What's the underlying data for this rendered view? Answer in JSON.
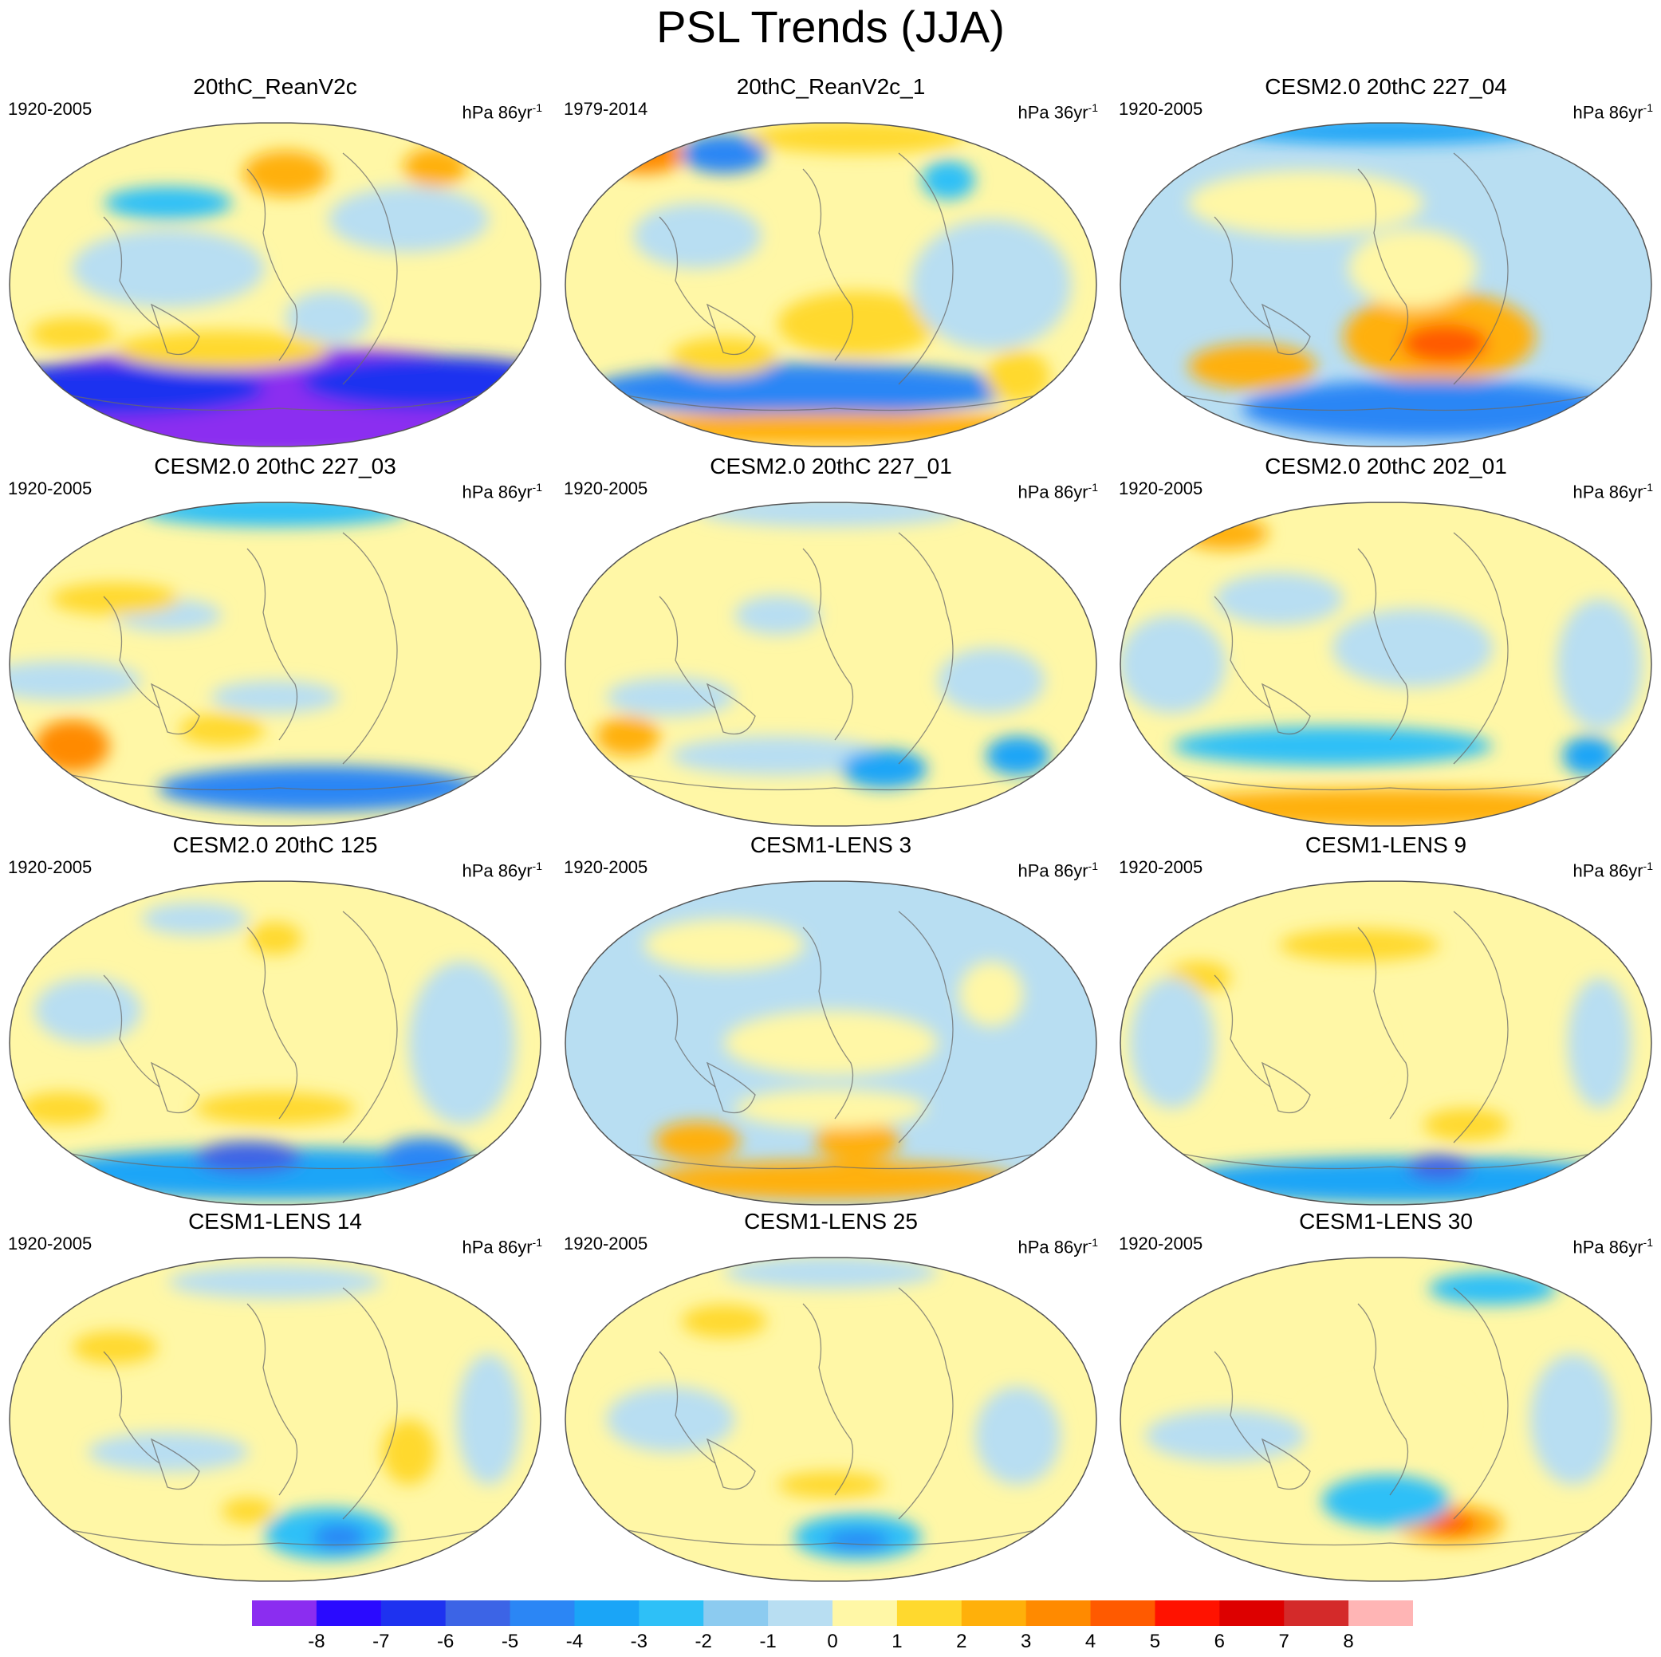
{
  "title": "PSL Trends (JJA)",
  "palette": {
    "-8": "#8b2df0",
    "-7": "#2a0aff",
    "-6": "#1e32f0",
    "-5": "#3c64e6",
    "-4": "#2b86f5",
    "-3": "#1aa5f7",
    "-2": "#2ec0f7",
    "-1": "#8ccbf0",
    "0": "#b8def2",
    "1": "#fff7a6",
    "2": "#ffd92e",
    "3": "#ffb00a",
    "4": "#ff8a00",
    "5": "#ff5a00",
    "6": "#ff1200",
    "7": "#dd0000",
    "8": "#d42a2a",
    "9": "#ffb5b5"
  },
  "chart_data": {
    "type": "heatmap",
    "colorbar": {
      "tick_labels": [
        "-8",
        "-7",
        "-6",
        "-5",
        "-4",
        "-3",
        "-2",
        "-1",
        "0",
        "1",
        "2",
        "3",
        "4",
        "5",
        "6",
        "7",
        "8"
      ],
      "levels": [
        -8,
        -7,
        -6,
        -5,
        -4,
        -3,
        -2,
        -1,
        0,
        1,
        2,
        3,
        4,
        5,
        6,
        7,
        8
      ],
      "colors": [
        "#8b2df0",
        "#2a0aff",
        "#1e32f0",
        "#3c64e6",
        "#2b86f5",
        "#1aa5f7",
        "#2ec0f7",
        "#8ccbf0",
        "#b8def2",
        "#fff7a6",
        "#ffd92e",
        "#ffb00a",
        "#ff8a00",
        "#ff5a00",
        "#ff1200",
        "#dd0000",
        "#d42a2a",
        "#ffb5b5"
      ]
    },
    "panels": [
      {
        "title": "20thC_ReanV2c",
        "period": "1920-2005",
        "units": "hPa 86yr",
        "units_exp": "-1",
        "background_level": 1,
        "blobs": [
          [
            0.5,
            0.85,
            0.55,
            0.16,
            -8
          ],
          [
            0.5,
            0.93,
            0.6,
            0.1,
            -8
          ],
          [
            0.2,
            0.82,
            0.28,
            0.08,
            -6
          ],
          [
            0.8,
            0.8,
            0.25,
            0.08,
            -6
          ],
          [
            0.52,
            0.16,
            0.08,
            0.07,
            3
          ],
          [
            0.8,
            0.14,
            0.06,
            0.06,
            3
          ],
          [
            0.3,
            0.25,
            0.12,
            0.05,
            -2
          ],
          [
            0.12,
            0.65,
            0.08,
            0.05,
            2
          ],
          [
            0.6,
            0.6,
            0.08,
            0.08,
            0
          ],
          [
            0.75,
            0.3,
            0.15,
            0.1,
            0
          ],
          [
            0.3,
            0.45,
            0.18,
            0.12,
            0
          ],
          [
            0.4,
            0.7,
            0.2,
            0.06,
            2
          ]
        ]
      },
      {
        "title": "20thC_ReanV2c_1",
        "period": "1979-2014",
        "units": "hPa 36yr",
        "units_exp": "-1",
        "background_level": 1,
        "blobs": [
          [
            0.45,
            0.82,
            0.4,
            0.08,
            -4
          ],
          [
            0.15,
            0.1,
            0.08,
            0.06,
            4
          ],
          [
            0.3,
            0.1,
            0.08,
            0.06,
            -4
          ],
          [
            0.72,
            0.18,
            0.05,
            0.06,
            -2
          ],
          [
            0.55,
            0.62,
            0.15,
            0.1,
            2
          ],
          [
            0.5,
            0.94,
            0.5,
            0.05,
            3
          ],
          [
            0.25,
            0.35,
            0.12,
            0.1,
            0
          ],
          [
            0.8,
            0.5,
            0.15,
            0.2,
            0
          ],
          [
            0.3,
            0.72,
            0.1,
            0.06,
            2
          ],
          [
            0.85,
            0.78,
            0.06,
            0.08,
            2
          ],
          [
            0.55,
            0.05,
            0.2,
            0.05,
            2
          ]
        ]
      },
      {
        "title": "CESM2.0 20thC 227_04",
        "period": "1920-2005",
        "units": "hPa 86yr",
        "units_exp": "-1",
        "background_level": 0,
        "blobs": [
          [
            0.6,
            0.66,
            0.18,
            0.14,
            3
          ],
          [
            0.61,
            0.68,
            0.08,
            0.06,
            5
          ],
          [
            0.58,
            0.88,
            0.35,
            0.09,
            -4
          ],
          [
            0.25,
            0.75,
            0.12,
            0.07,
            3
          ],
          [
            0.35,
            0.25,
            0.22,
            0.1,
            1
          ],
          [
            0.5,
            0.03,
            0.3,
            0.04,
            -3
          ],
          [
            0.55,
            0.45,
            0.12,
            0.12,
            1
          ]
        ]
      },
      {
        "title": "CESM2.0 20thC 227_03",
        "period": "1920-2005",
        "units": "hPa 86yr",
        "units_exp": "-1",
        "background_level": 1,
        "blobs": [
          [
            0.12,
            0.75,
            0.07,
            0.08,
            4
          ],
          [
            0.58,
            0.88,
            0.3,
            0.07,
            -4
          ],
          [
            0.5,
            0.03,
            0.25,
            0.05,
            -2
          ],
          [
            0.1,
            0.55,
            0.15,
            0.06,
            0
          ],
          [
            0.5,
            0.6,
            0.12,
            0.05,
            0
          ],
          [
            0.4,
            0.7,
            0.08,
            0.05,
            2
          ],
          [
            0.3,
            0.35,
            0.1,
            0.05,
            0
          ],
          [
            0.2,
            0.3,
            0.12,
            0.05,
            2
          ]
        ]
      },
      {
        "title": "CESM2.0 20thC 227_01",
        "period": "1920-2005",
        "units": "hPa 86yr",
        "units_exp": "-1",
        "background_level": 1,
        "blobs": [
          [
            0.12,
            0.72,
            0.06,
            0.06,
            3
          ],
          [
            0.4,
            0.78,
            0.2,
            0.06,
            0
          ],
          [
            0.6,
            0.82,
            0.08,
            0.06,
            -3
          ],
          [
            0.85,
            0.78,
            0.06,
            0.06,
            -3
          ],
          [
            0.5,
            0.03,
            0.25,
            0.05,
            0
          ],
          [
            0.2,
            0.6,
            0.12,
            0.06,
            0
          ],
          [
            0.8,
            0.55,
            0.1,
            0.1,
            0
          ],
          [
            0.4,
            0.35,
            0.08,
            0.06,
            0
          ]
        ]
      },
      {
        "title": "CESM2.0 20thC 202_01",
        "period": "1920-2005",
        "units": "hPa 86yr",
        "units_exp": "-1",
        "background_level": 1,
        "blobs": [
          [
            0.5,
            0.94,
            0.45,
            0.06,
            3
          ],
          [
            0.4,
            0.75,
            0.3,
            0.06,
            -2
          ],
          [
            0.88,
            0.78,
            0.05,
            0.06,
            -3
          ],
          [
            0.2,
            0.1,
            0.08,
            0.05,
            3
          ],
          [
            0.1,
            0.5,
            0.1,
            0.15,
            0
          ],
          [
            0.9,
            0.5,
            0.08,
            0.2,
            0
          ],
          [
            0.55,
            0.45,
            0.15,
            0.12,
            0
          ],
          [
            0.3,
            0.3,
            0.12,
            0.08,
            0
          ]
        ]
      },
      {
        "title": "CESM2.0 20thC 125",
        "period": "1920-2005",
        "units": "hPa 86yr",
        "units_exp": "-1",
        "background_level": 1,
        "blobs": [
          [
            0.5,
            0.9,
            0.45,
            0.08,
            -3
          ],
          [
            0.45,
            0.85,
            0.1,
            0.05,
            -5
          ],
          [
            0.78,
            0.85,
            0.08,
            0.06,
            -4
          ],
          [
            0.5,
            0.7,
            0.15,
            0.05,
            2
          ],
          [
            0.1,
            0.7,
            0.08,
            0.05,
            2
          ],
          [
            0.35,
            0.12,
            0.1,
            0.05,
            0
          ],
          [
            0.5,
            0.18,
            0.05,
            0.05,
            2
          ],
          [
            0.85,
            0.5,
            0.1,
            0.25,
            0
          ],
          [
            0.15,
            0.4,
            0.1,
            0.1,
            0
          ]
        ]
      },
      {
        "title": "CESM1-LENS 3",
        "period": "1920-2005",
        "units": "hPa 86yr",
        "units_exp": "-1",
        "background_level": 0,
        "blobs": [
          [
            0.5,
            0.92,
            0.35,
            0.06,
            3
          ],
          [
            0.25,
            0.8,
            0.08,
            0.06,
            3
          ],
          [
            0.55,
            0.8,
            0.08,
            0.06,
            3
          ],
          [
            0.5,
            0.5,
            0.2,
            0.1,
            1
          ],
          [
            0.5,
            0.7,
            0.18,
            0.06,
            1
          ],
          [
            0.3,
            0.2,
            0.15,
            0.08,
            1
          ],
          [
            0.8,
            0.35,
            0.06,
            0.1,
            1
          ]
        ]
      },
      {
        "title": "CESM1-LENS 9",
        "period": "1920-2005",
        "units": "hPa 86yr",
        "units_exp": "-1",
        "background_level": 1,
        "blobs": [
          [
            0.55,
            0.92,
            0.45,
            0.07,
            -3
          ],
          [
            0.6,
            0.88,
            0.06,
            0.04,
            -5
          ],
          [
            0.45,
            0.2,
            0.15,
            0.05,
            2
          ],
          [
            0.15,
            0.3,
            0.06,
            0.05,
            2
          ],
          [
            0.65,
            0.75,
            0.08,
            0.05,
            2
          ],
          [
            0.35,
            0.5,
            0.15,
            0.15,
            1
          ],
          [
            0.9,
            0.5,
            0.06,
            0.2,
            0
          ],
          [
            0.1,
            0.5,
            0.08,
            0.2,
            0
          ]
        ]
      },
      {
        "title": "CESM1-LENS 14",
        "period": "1920-2005",
        "units": "hPa 86yr",
        "units_exp": "-1",
        "background_level": 1,
        "blobs": [
          [
            0.6,
            0.85,
            0.12,
            0.08,
            -2
          ],
          [
            0.62,
            0.86,
            0.05,
            0.04,
            -4
          ],
          [
            0.45,
            0.78,
            0.05,
            0.04,
            2
          ],
          [
            0.75,
            0.6,
            0.05,
            0.1,
            2
          ],
          [
            0.2,
            0.28,
            0.08,
            0.05,
            2
          ],
          [
            0.3,
            0.6,
            0.15,
            0.06,
            0
          ],
          [
            0.9,
            0.5,
            0.06,
            0.2,
            0
          ],
          [
            0.5,
            0.08,
            0.2,
            0.05,
            0
          ]
        ]
      },
      {
        "title": "CESM1-LENS 25",
        "period": "1920-2005",
        "units": "hPa 86yr",
        "units_exp": "-1",
        "background_level": 1,
        "blobs": [
          [
            0.55,
            0.86,
            0.12,
            0.07,
            -2
          ],
          [
            0.55,
            0.87,
            0.06,
            0.03,
            -4
          ],
          [
            0.5,
            0.7,
            0.1,
            0.04,
            2
          ],
          [
            0.3,
            0.2,
            0.08,
            0.05,
            2
          ],
          [
            0.2,
            0.5,
            0.12,
            0.1,
            0
          ],
          [
            0.5,
            0.05,
            0.2,
            0.05,
            0
          ],
          [
            0.85,
            0.55,
            0.08,
            0.15,
            0
          ]
        ]
      },
      {
        "title": "CESM1-LENS 30",
        "period": "1920-2005",
        "units": "hPa 86yr",
        "units_exp": "-1",
        "background_level": 1,
        "blobs": [
          [
            0.62,
            0.82,
            0.1,
            0.06,
            3
          ],
          [
            0.62,
            0.82,
            0.05,
            0.03,
            5
          ],
          [
            0.5,
            0.75,
            0.12,
            0.08,
            -2
          ],
          [
            0.7,
            0.1,
            0.12,
            0.05,
            -2
          ],
          [
            0.2,
            0.55,
            0.15,
            0.08,
            0
          ],
          [
            0.85,
            0.5,
            0.08,
            0.2,
            0
          ],
          [
            0.5,
            0.5,
            0.15,
            0.1,
            1
          ]
        ]
      }
    ]
  }
}
